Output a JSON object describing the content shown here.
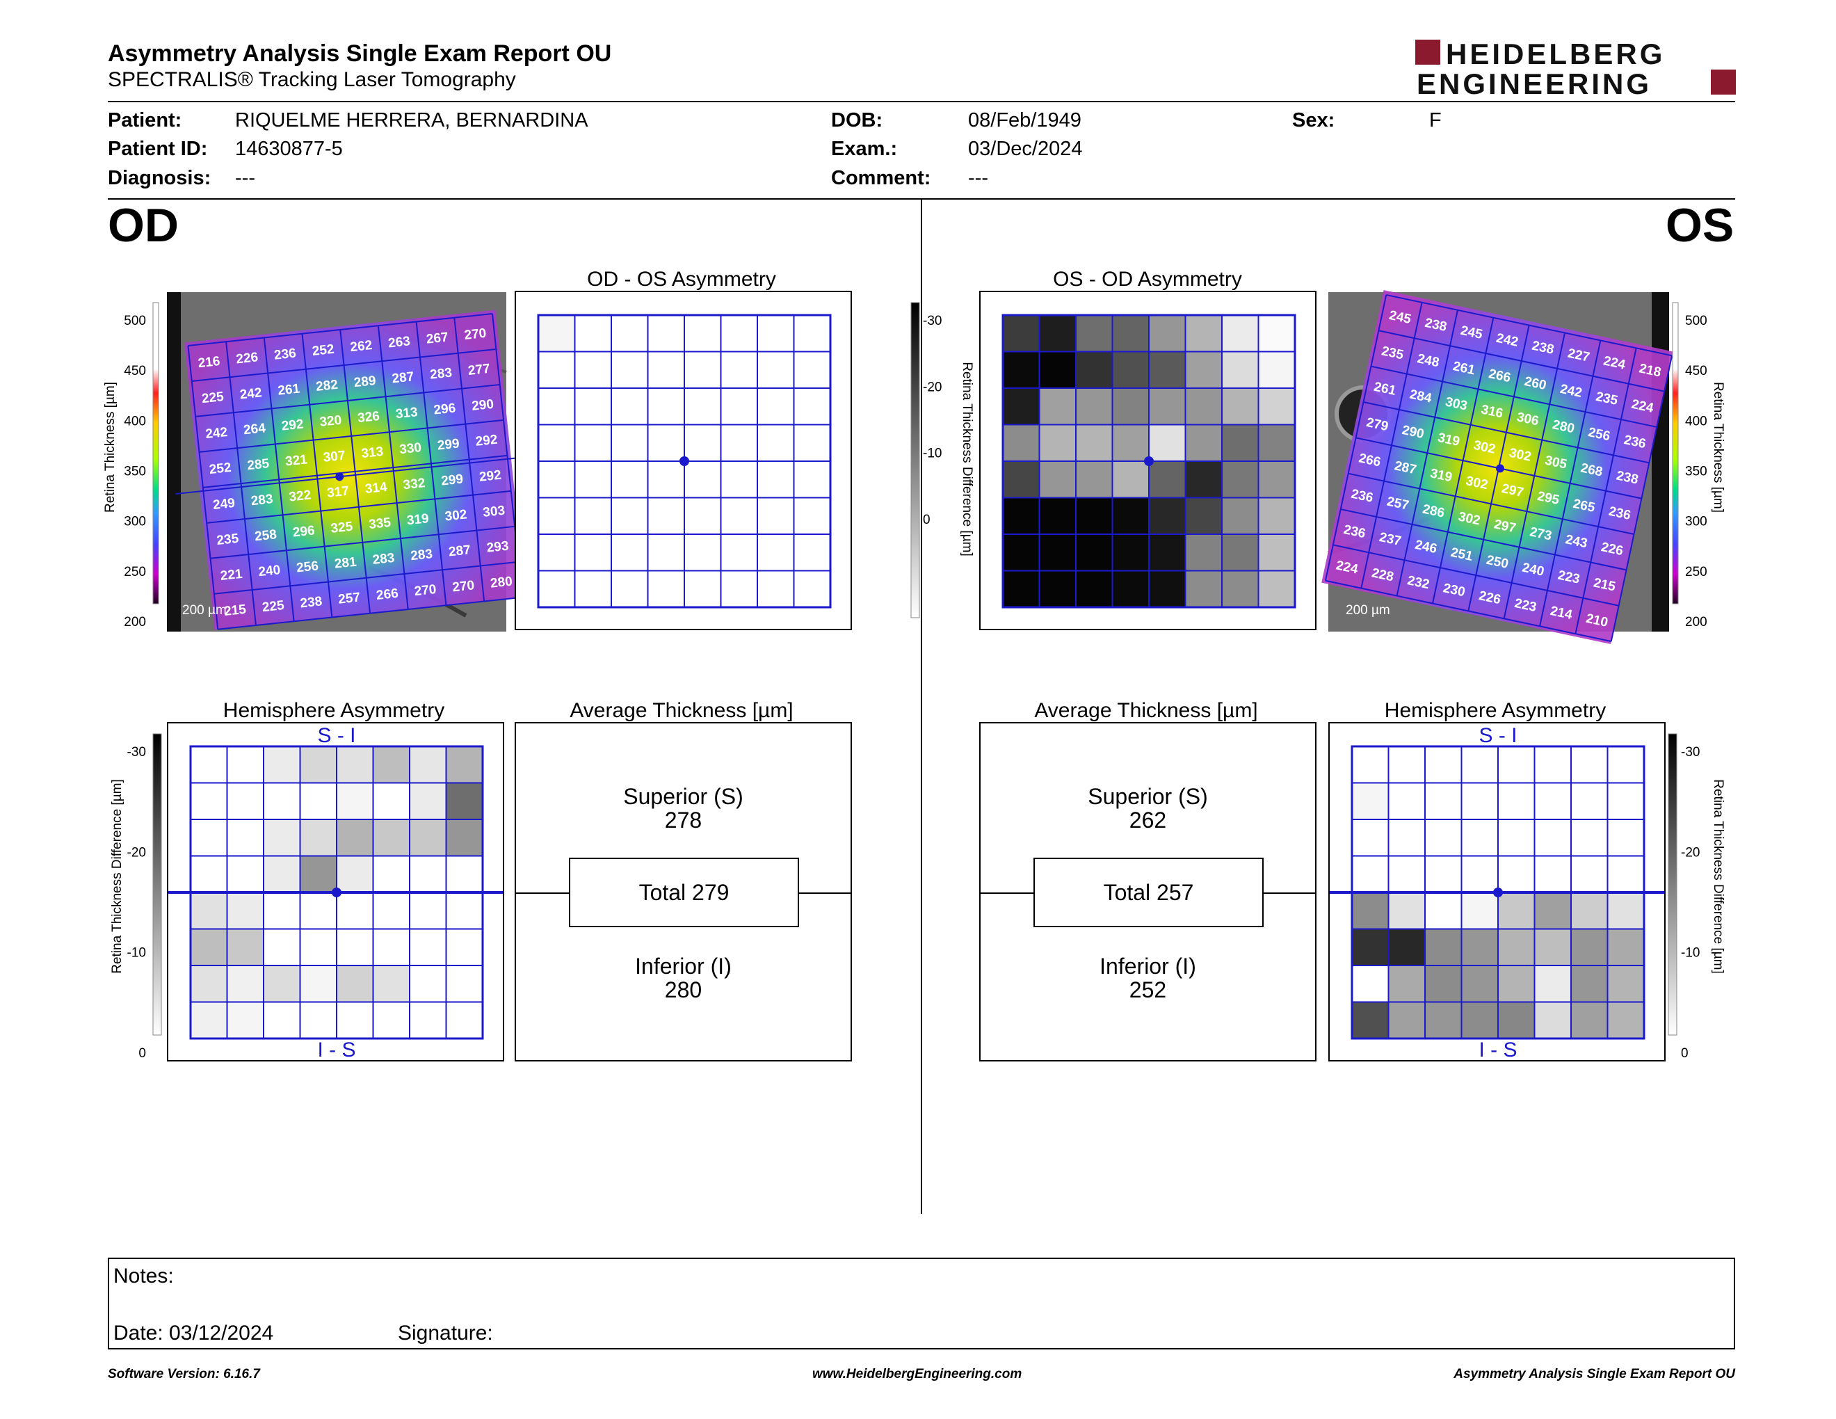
{
  "header": {
    "title": "Asymmetry Analysis Single Exam Report OU",
    "subtitle": "SPECTRALIS® Tracking Laser Tomography",
    "logo_line1": "HEIDELBERG",
    "logo_line2": "ENGINEERING"
  },
  "patient": {
    "patient_label": "Patient:",
    "patient_value": "RIQUELME HERRERA, BERNARDINA",
    "id_label": "Patient ID:",
    "id_value": "14630877-5",
    "diagnosis_label": "Diagnosis:",
    "diagnosis_value": "---",
    "dob_label": "DOB:",
    "dob_value": "08/Feb/1949",
    "exam_label": "Exam.:",
    "exam_value": "03/Dec/2024",
    "comment_label": "Comment:",
    "comment_value": "---",
    "sex_label": "Sex:",
    "sex_value": "F"
  },
  "eyes": {
    "od": "OD",
    "os": "OS"
  },
  "panels": {
    "od_os_asym_title": "OD - OS Asymmetry",
    "os_od_asym_title": "OS - OD Asymmetry",
    "hemi_title": "Hemisphere Asymmetry",
    "avg_title": "Average Thickness [µm]",
    "si_label": "S - I",
    "is_label": "I - S",
    "scale_label": "200 µm"
  },
  "scales": {
    "thickness_label": "Retina Thickness [µm]",
    "thickness_ticks": [
      "500",
      "450",
      "400",
      "350",
      "300",
      "250",
      "200"
    ],
    "diff_label": "Retina Thickness Difference [µm]",
    "diff_ticks": [
      "-30",
      "-20",
      "-10",
      "0"
    ]
  },
  "average": {
    "od": {
      "superior_label": "Superior (S)",
      "superior": "278",
      "total": "Total 279",
      "inferior_label": "Inferior (I)",
      "inferior": "280"
    },
    "os": {
      "superior_label": "Superior (S)",
      "superior": "262",
      "total": "Total 257",
      "inferior_label": "Inferior (I)",
      "inferior": "252"
    }
  },
  "od_thickness": [
    [
      "216",
      "226",
      "236",
      "252",
      "262",
      "263",
      "267",
      "270"
    ],
    [
      "225",
      "242",
      "261",
      "282",
      "289",
      "287",
      "283",
      "277"
    ],
    [
      "242",
      "264",
      "292",
      "320",
      "326",
      "313",
      "296",
      "290"
    ],
    [
      "252",
      "285",
      "321",
      "307",
      "313",
      "330",
      "299",
      "292"
    ],
    [
      "249",
      "283",
      "322",
      "317",
      "314",
      "332",
      "299",
      "292"
    ],
    [
      "235",
      "258",
      "296",
      "325",
      "335",
      "319",
      "302",
      "303"
    ],
    [
      "221",
      "240",
      "256",
      "281",
      "283",
      "283",
      "287",
      "293"
    ],
    [
      "215",
      "225",
      "238",
      "257",
      "266",
      "270",
      "270",
      "280"
    ]
  ],
  "os_thickness": [
    [
      "245",
      "238",
      "245",
      "242",
      "238",
      "227",
      "224",
      "218"
    ],
    [
      "235",
      "248",
      "261",
      "266",
      "260",
      "242",
      "235",
      "224"
    ],
    [
      "261",
      "284",
      "303",
      "316",
      "306",
      "280",
      "256",
      "236"
    ],
    [
      "279",
      "290",
      "319",
      "302",
      "302",
      "305",
      "268",
      "238"
    ],
    [
      "266",
      "287",
      "319",
      "302",
      "297",
      "295",
      "265",
      "236"
    ],
    [
      "236",
      "257",
      "286",
      "302",
      "297",
      "273",
      "243",
      "226"
    ],
    [
      "236",
      "237",
      "246",
      "251",
      "250",
      "240",
      "223",
      "215"
    ],
    [
      "224",
      "228",
      "232",
      "230",
      "226",
      "223",
      "214",
      "210"
    ]
  ],
  "od_os_asym_gray": [
    [
      245,
      255,
      255,
      255,
      255,
      255,
      255,
      255
    ],
    [
      255,
      255,
      255,
      255,
      255,
      255,
      255,
      255
    ],
    [
      255,
      255,
      255,
      255,
      255,
      255,
      255,
      255
    ],
    [
      255,
      255,
      255,
      255,
      255,
      255,
      255,
      255
    ],
    [
      255,
      255,
      255,
      255,
      255,
      255,
      255,
      255
    ],
    [
      255,
      255,
      255,
      255,
      255,
      255,
      255,
      255
    ],
    [
      255,
      255,
      255,
      255,
      255,
      255,
      255,
      255
    ],
    [
      255,
      255,
      255,
      255,
      255,
      255,
      255,
      255
    ]
  ],
  "os_od_asym_gray": [
    [
      60,
      30,
      110,
      100,
      150,
      180,
      235,
      250
    ],
    [
      10,
      5,
      50,
      80,
      90,
      160,
      220,
      245
    ],
    [
      30,
      160,
      150,
      130,
      150,
      150,
      180,
      210
    ],
    [
      140,
      180,
      180,
      160,
      225,
      150,
      110,
      130
    ],
    [
      70,
      150,
      150,
      180,
      100,
      40,
      120,
      150
    ],
    [
      5,
      5,
      5,
      10,
      40,
      70,
      140,
      180
    ],
    [
      5,
      5,
      5,
      10,
      20,
      130,
      120,
      190
    ],
    [
      5,
      5,
      5,
      10,
      15,
      140,
      140,
      190
    ]
  ],
  "od_hemi_gray": [
    [
      255,
      255,
      235,
      215,
      225,
      190,
      230,
      180
    ],
    [
      255,
      255,
      255,
      255,
      245,
      255,
      235,
      110
    ],
    [
      255,
      255,
      235,
      220,
      180,
      200,
      200,
      150
    ],
    [
      255,
      255,
      235,
      150,
      235,
      255,
      255,
      255
    ],
    [
      225,
      235,
      255,
      255,
      255,
      255,
      255,
      255
    ],
    [
      190,
      200,
      255,
      255,
      255,
      255,
      255,
      255
    ],
    [
      225,
      240,
      220,
      245,
      210,
      225,
      255,
      255
    ],
    [
      240,
      245,
      255,
      255,
      255,
      255,
      255,
      255
    ]
  ],
  "os_hemi_gray": [
    [
      255,
      255,
      255,
      255,
      255,
      255,
      255,
      255
    ],
    [
      245,
      255,
      255,
      255,
      255,
      255,
      255,
      255
    ],
    [
      255,
      255,
      255,
      255,
      255,
      255,
      255,
      255
    ],
    [
      255,
      255,
      255,
      255,
      255,
      255,
      255,
      255
    ],
    [
      140,
      225,
      255,
      245,
      200,
      160,
      205,
      225
    ],
    [
      50,
      40,
      140,
      150,
      180,
      190,
      150,
      170
    ],
    [
      255,
      170,
      140,
      150,
      180,
      235,
      150,
      180
    ],
    [
      80,
      160,
      150,
      140,
      135,
      220,
      160,
      180
    ]
  ],
  "notes": {
    "notes_label": "Notes:",
    "date_label": "Date: 03/12/2024",
    "signature_label": "Signature:"
  },
  "footer": {
    "software": "Software Version: 6.16.7",
    "website": "www.HeidelbergEngineering.com",
    "report": "Asymmetry Analysis Single Exam Report OU"
  },
  "colors": {
    "grid_blue": "#1a1acc",
    "logo_red": "#8b1a2e"
  }
}
